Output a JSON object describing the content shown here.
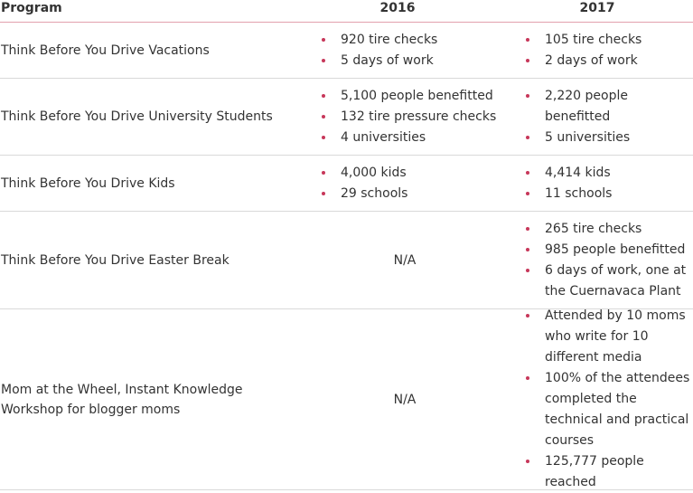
{
  "header": {
    "program": "Program",
    "y2016": "2016",
    "y2017": "2017"
  },
  "rows": [
    {
      "program": "Think Before You Drive Vacations",
      "y2016": [
        "920 tire checks",
        "5 days of work"
      ],
      "y2017": [
        "105 tire checks",
        "2 days of work"
      ]
    },
    {
      "program": "Think Before You Drive University Students",
      "y2016": [
        "5,100 people benefitted",
        "132 tire pressure checks",
        "4 universities"
      ],
      "y2017": [
        "2,220 people benefitted",
        "5 universities"
      ]
    },
    {
      "program": "Think Before You Drive Kids",
      "y2016": [
        "4,000 kids",
        "29 schools"
      ],
      "y2017": [
        "4,414 kids",
        "11 schools"
      ]
    },
    {
      "program": "Think Before You Drive Easter Break",
      "y2016_na": "N/A",
      "y2017": [
        "265 tire checks",
        "985 people benefitted",
        "6 days of work, one at the Cuernavaca Plant"
      ]
    },
    {
      "program": "Mom at the Wheel, Instant Knowledge Workshop for blogger moms",
      "y2016_na": "N/A",
      "y2017": [
        "Attended by 10 moms who write for 10 different media",
        "100% of the attendees completed the technical and practical courses",
        "125,777 people reached"
      ]
    }
  ],
  "colors": {
    "bullet": "#c7375a",
    "header_rule": "#e3a1ad",
    "row_rule": "#d9d9d9",
    "text": "#333333"
  }
}
